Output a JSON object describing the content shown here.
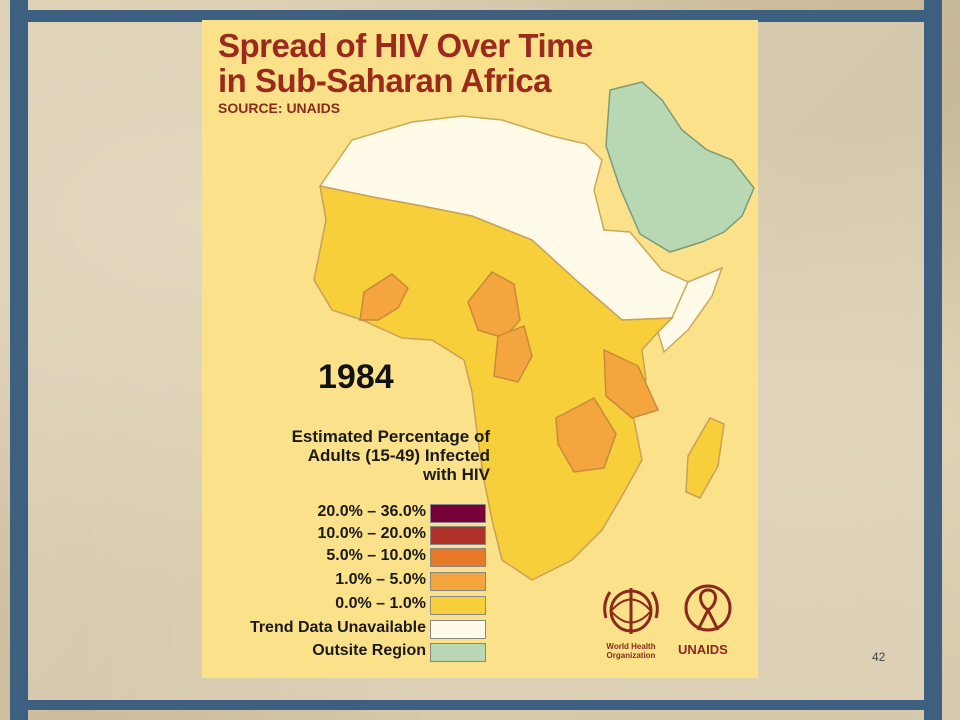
{
  "poster": {
    "title_line1": "Spread of HIV Over Time",
    "title_line2": "in Sub-Saharan Africa",
    "source": "SOURCE: UNAIDS",
    "year": "1984"
  },
  "legend": {
    "title_line1": "Estimated Percentage of",
    "title_line2": "Adults (15-49) Infected",
    "title_line3": "with HIV",
    "items": [
      {
        "label": "20.0% – 36.0%",
        "color": "#76003a"
      },
      {
        "label": "10.0% – 20.0%",
        "color": "#b0302a"
      },
      {
        "label": "5.0% – 10.0%",
        "color": "#e8792b"
      },
      {
        "label": "1.0% –   5.0%",
        "color": "#f4a53e"
      },
      {
        "label": "0.0% –   1.0%",
        "color": "#f6cf3a"
      },
      {
        "label": "Trend Data Unavailable",
        "color": "#fffbe8"
      },
      {
        "label": "Outsite Region",
        "color": "#b8d8b3"
      }
    ]
  },
  "logos": {
    "who_line1": "World Health",
    "who_line2": "Organization",
    "unaids": "UNAIDS"
  },
  "slide": {
    "number": "42"
  },
  "colors": {
    "frame": "#3d5f80",
    "poster_bg": "#fbe28a",
    "title": "#9b2a1d"
  }
}
